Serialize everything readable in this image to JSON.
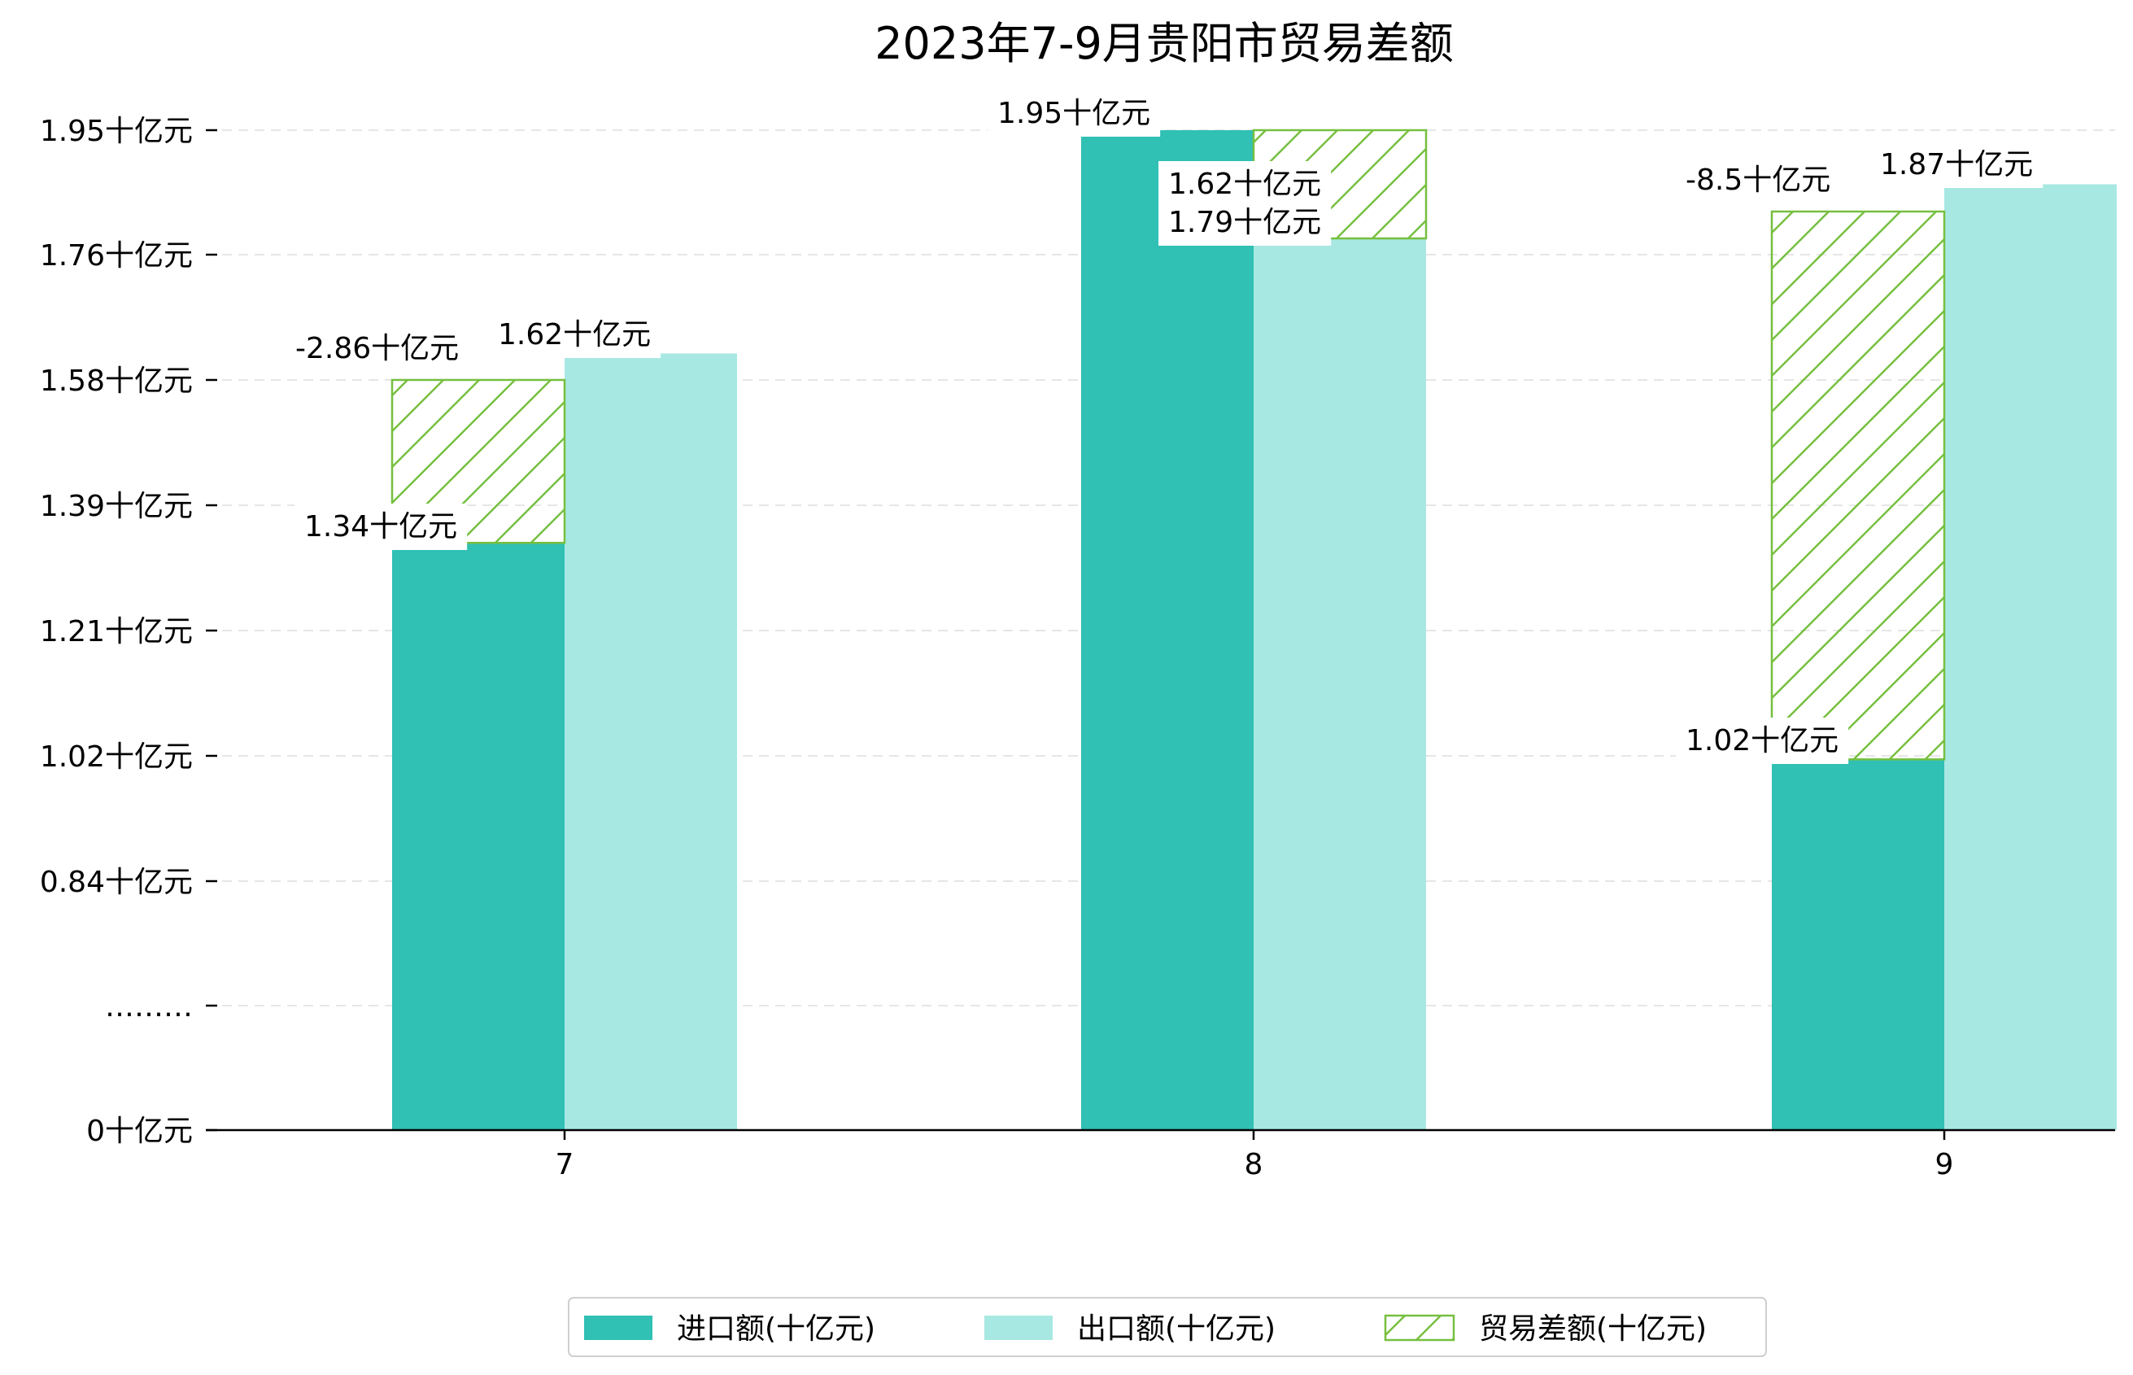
{
  "chart_data": {
    "type": "bar",
    "title": "2023年7-9月贵阳市贸易差额",
    "xlabel": "",
    "ylabel": "",
    "categories": [
      "7",
      "8",
      "9"
    ],
    "y_tick_labels": [
      "0十亿元",
      "………",
      "0.84十亿元",
      "1.02十亿元",
      "1.21十亿元",
      "1.39十亿元",
      "1.58十亿元",
      "1.76十亿元",
      "1.95十亿元"
    ],
    "grid": "horizontal dashed",
    "legend_position": "bottom-center",
    "series": [
      {
        "name": "进口额(十亿元)",
        "color": "#30c0b4",
        "values": [
          1.34,
          1.95,
          1.02
        ],
        "labels": [
          "1.34十亿元",
          "1.95十亿元",
          "1.02十亿元"
        ]
      },
      {
        "name": "出口额(十亿元)",
        "color": "#a8e8e2",
        "values": [
          1.62,
          1.79,
          1.87
        ],
        "labels": [
          "1.62十亿元",
          "1.79十亿元",
          "1.87十亿元"
        ]
      },
      {
        "name": "贸易差额(十亿元)",
        "color": "#76bf40",
        "pattern": "diagonal-hatch",
        "values": [
          -2.86,
          1.62,
          -8.5
        ],
        "labels": [
          "-2.86十亿元",
          "1.62十亿元",
          "-8.5十亿元"
        ]
      }
    ]
  }
}
